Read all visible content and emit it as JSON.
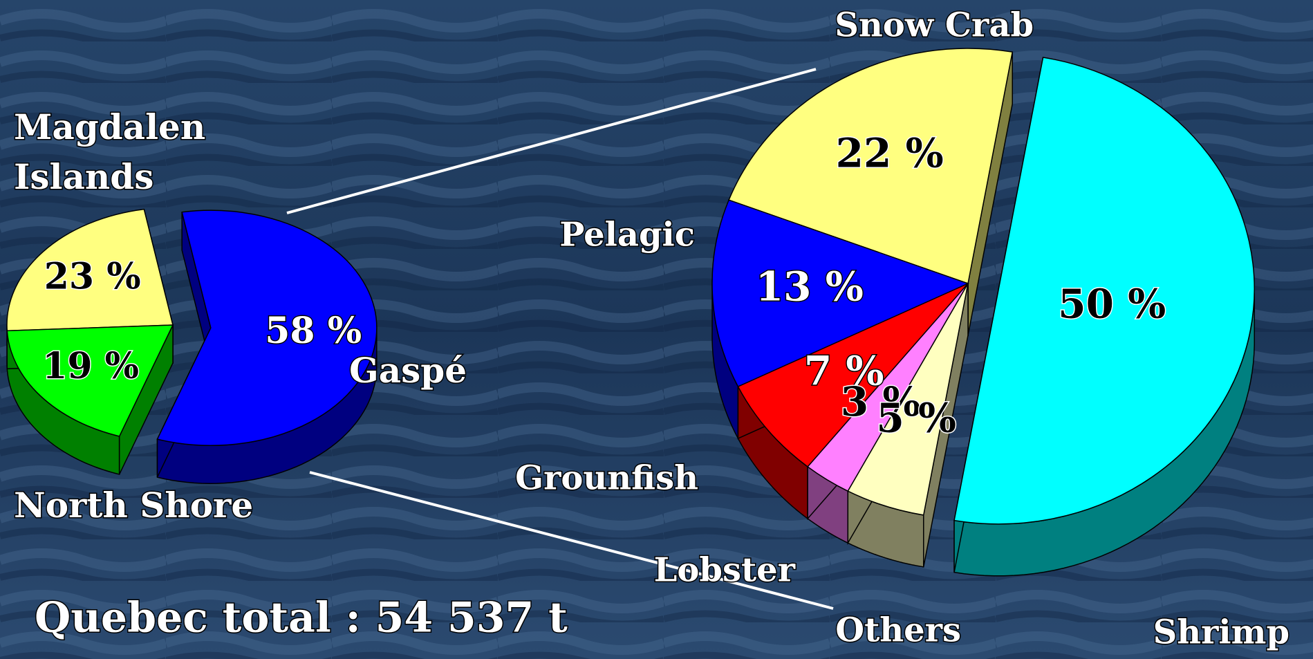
{
  "chart_data": [
    {
      "type": "pie",
      "categories": [
        "Magdalen Islands",
        "North Shore",
        "Gaspé"
      ],
      "values": [
        23,
        19,
        58
      ],
      "value_labels": [
        "23 %",
        "19 %",
        "58 %"
      ],
      "colors": [
        "#ffff80",
        "#00ff00",
        "#0000ff"
      ]
    },
    {
      "type": "pie",
      "categories": [
        "Snow Crab",
        "Pelagic",
        "Grounfish",
        "Lobster",
        "Others",
        "Shrimp"
      ],
      "values": [
        22,
        13,
        7,
        3,
        5,
        50
      ],
      "value_labels": [
        "22 %",
        "13 %",
        "7 %",
        "3 %",
        "5 %",
        "50 %"
      ],
      "colors": [
        "#ffff80",
        "#0000ff",
        "#ff0000",
        "#ff80ff",
        "#ffffc0",
        "#00ffff"
      ]
    }
  ],
  "footer": {
    "text": "Quebec total : 54 537 t"
  }
}
